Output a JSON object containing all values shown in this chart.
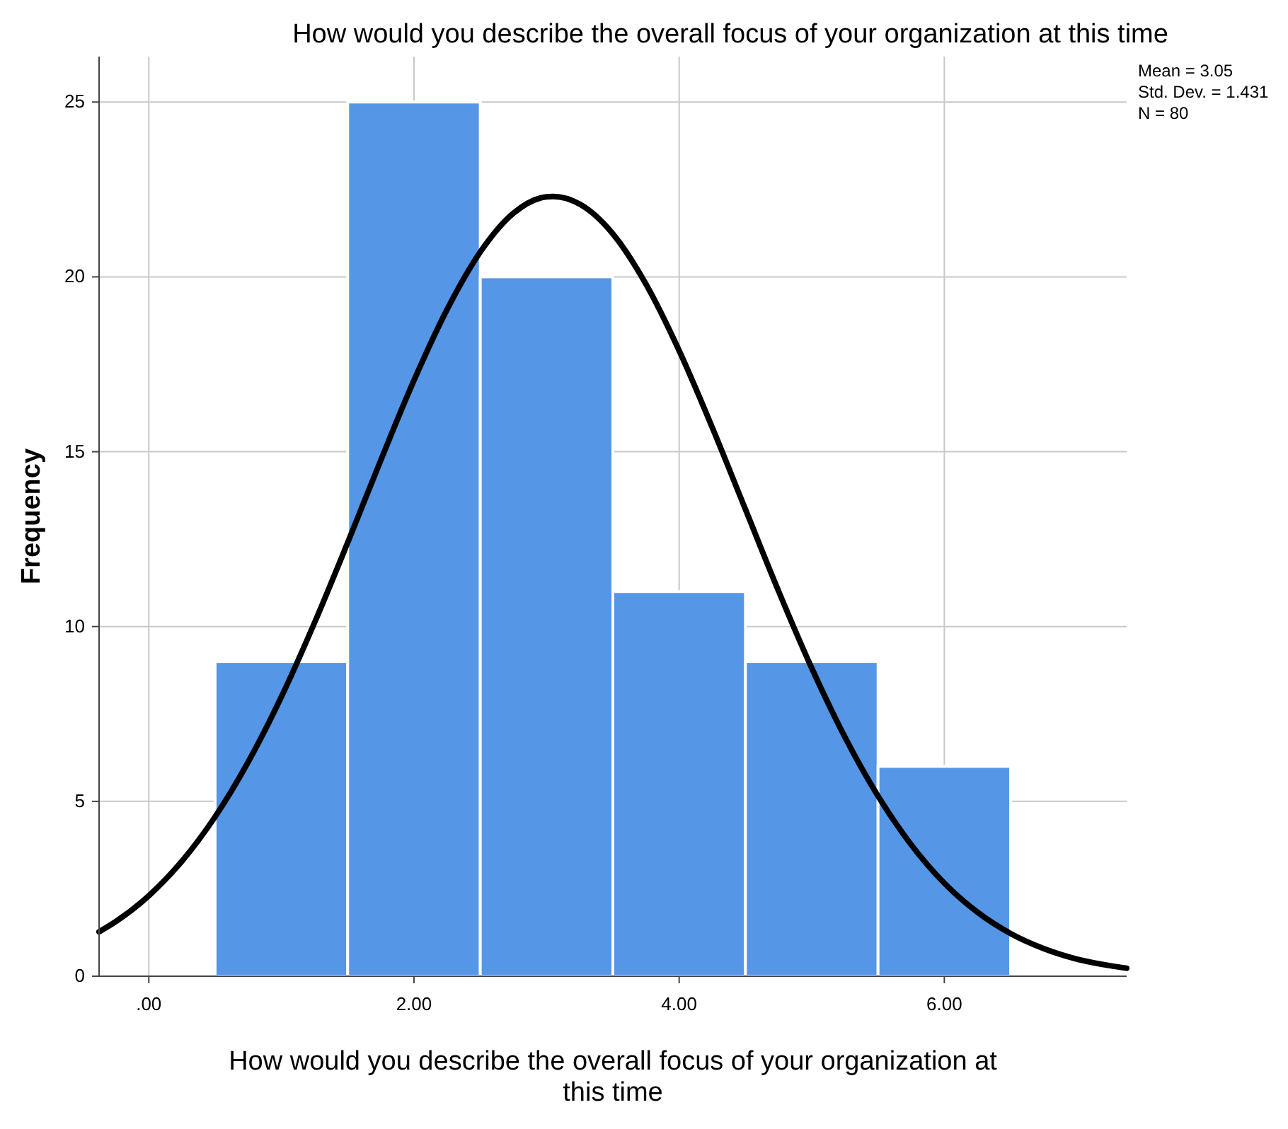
{
  "chart_data": {
    "type": "histogram",
    "title": "How would you describe the overall focus of your organization at this time",
    "xlabel": "How would you describe the overall focus of your organization at this time",
    "ylabel": "Frequency",
    "bins": [
      0.5,
      1.5,
      2.5,
      3.5,
      4.5,
      5.5,
      6.5
    ],
    "values": [
      9,
      25,
      20,
      11,
      9,
      6
    ],
    "color": "#5596e6",
    "series": [
      {
        "type": "line",
        "color": "#000000",
        "x": [
          -0.375,
          -0.25,
          0,
          0.25,
          0.5,
          0.75,
          1,
          1.25,
          1.5,
          1.75,
          2,
          2.25,
          2.5,
          2.75,
          3,
          3.05,
          3.25,
          3.5,
          3.75,
          4,
          4.25,
          4.5,
          4.75,
          5,
          5.25,
          5.5,
          5.75,
          6,
          6.25,
          6.5,
          6.75,
          7,
          7.25,
          7.375
        ],
        "values": [
          1.27,
          1.56,
          2.3,
          3.29,
          4.56,
          6.13,
          7.99,
          10.11,
          12.4,
          14.76,
          17.04,
          19.07,
          20.71,
          21.82,
          22.29,
          22.3,
          22.08,
          21.23,
          19.79,
          17.89,
          15.69,
          13.35,
          11.01,
          8.81,
          6.84,
          5.15,
          3.76,
          2.66,
          1.83,
          1.22,
          0.79,
          0.49,
          0.3,
          0.23
        ]
      }
    ],
    "xlim": [
      -0.375,
      7.375
    ],
    "xticks": [
      {
        "value": 0,
        "label": ".00"
      },
      {
        "value": 2,
        "label": "2.00"
      },
      {
        "value": 4,
        "label": "4.00"
      },
      {
        "value": 6,
        "label": "6.00"
      }
    ],
    "ylim": [
      0,
      26.3
    ],
    "yticks": [
      0,
      5,
      10,
      15,
      20,
      25
    ],
    "grid": true,
    "annotations": [
      "Mean = 3.05",
      "Std. Dev. = 1.431",
      "N = 80"
    ]
  }
}
